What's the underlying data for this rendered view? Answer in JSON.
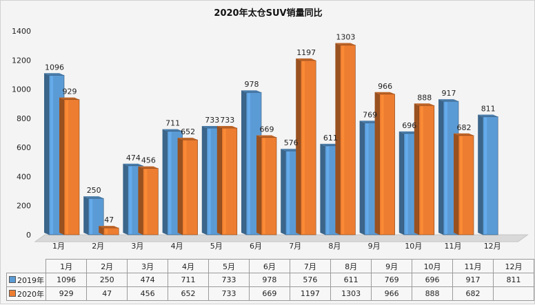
{
  "chart_data": {
    "type": "bar",
    "title": "2020年太仓SUV销量同比",
    "categories": [
      "1月",
      "2月",
      "3月",
      "4月",
      "5月",
      "6月",
      "7月",
      "8月",
      "9月",
      "10月",
      "11月",
      "12月"
    ],
    "series": [
      {
        "name": "2019年",
        "color": "#5b9bd5",
        "values": [
          1096,
          250,
          474,
          711,
          733,
          978,
          576,
          611,
          769,
          696,
          917,
          811
        ]
      },
      {
        "name": "2020年",
        "color": "#ed7d31",
        "values": [
          929,
          47,
          456,
          652,
          733,
          669,
          1197,
          1303,
          966,
          888,
          682,
          null
        ]
      }
    ],
    "y_ticks": [
      "0",
      "200",
      "400",
      "600",
      "800",
      "1000",
      "1200",
      "1400"
    ],
    "ylim": [
      0,
      1400
    ],
    "grid": false,
    "legend": "data-table",
    "table_rows": [
      {
        "name": "2019年",
        "cells": [
          "1096",
          "250",
          "474",
          "711",
          "733",
          "978",
          "576",
          "611",
          "769",
          "696",
          "917",
          "811"
        ]
      },
      {
        "name": "2020年",
        "cells": [
          "929",
          "47",
          "456",
          "652",
          "733",
          "669",
          "1197",
          "1303",
          "966",
          "888",
          "682",
          ""
        ]
      }
    ]
  }
}
